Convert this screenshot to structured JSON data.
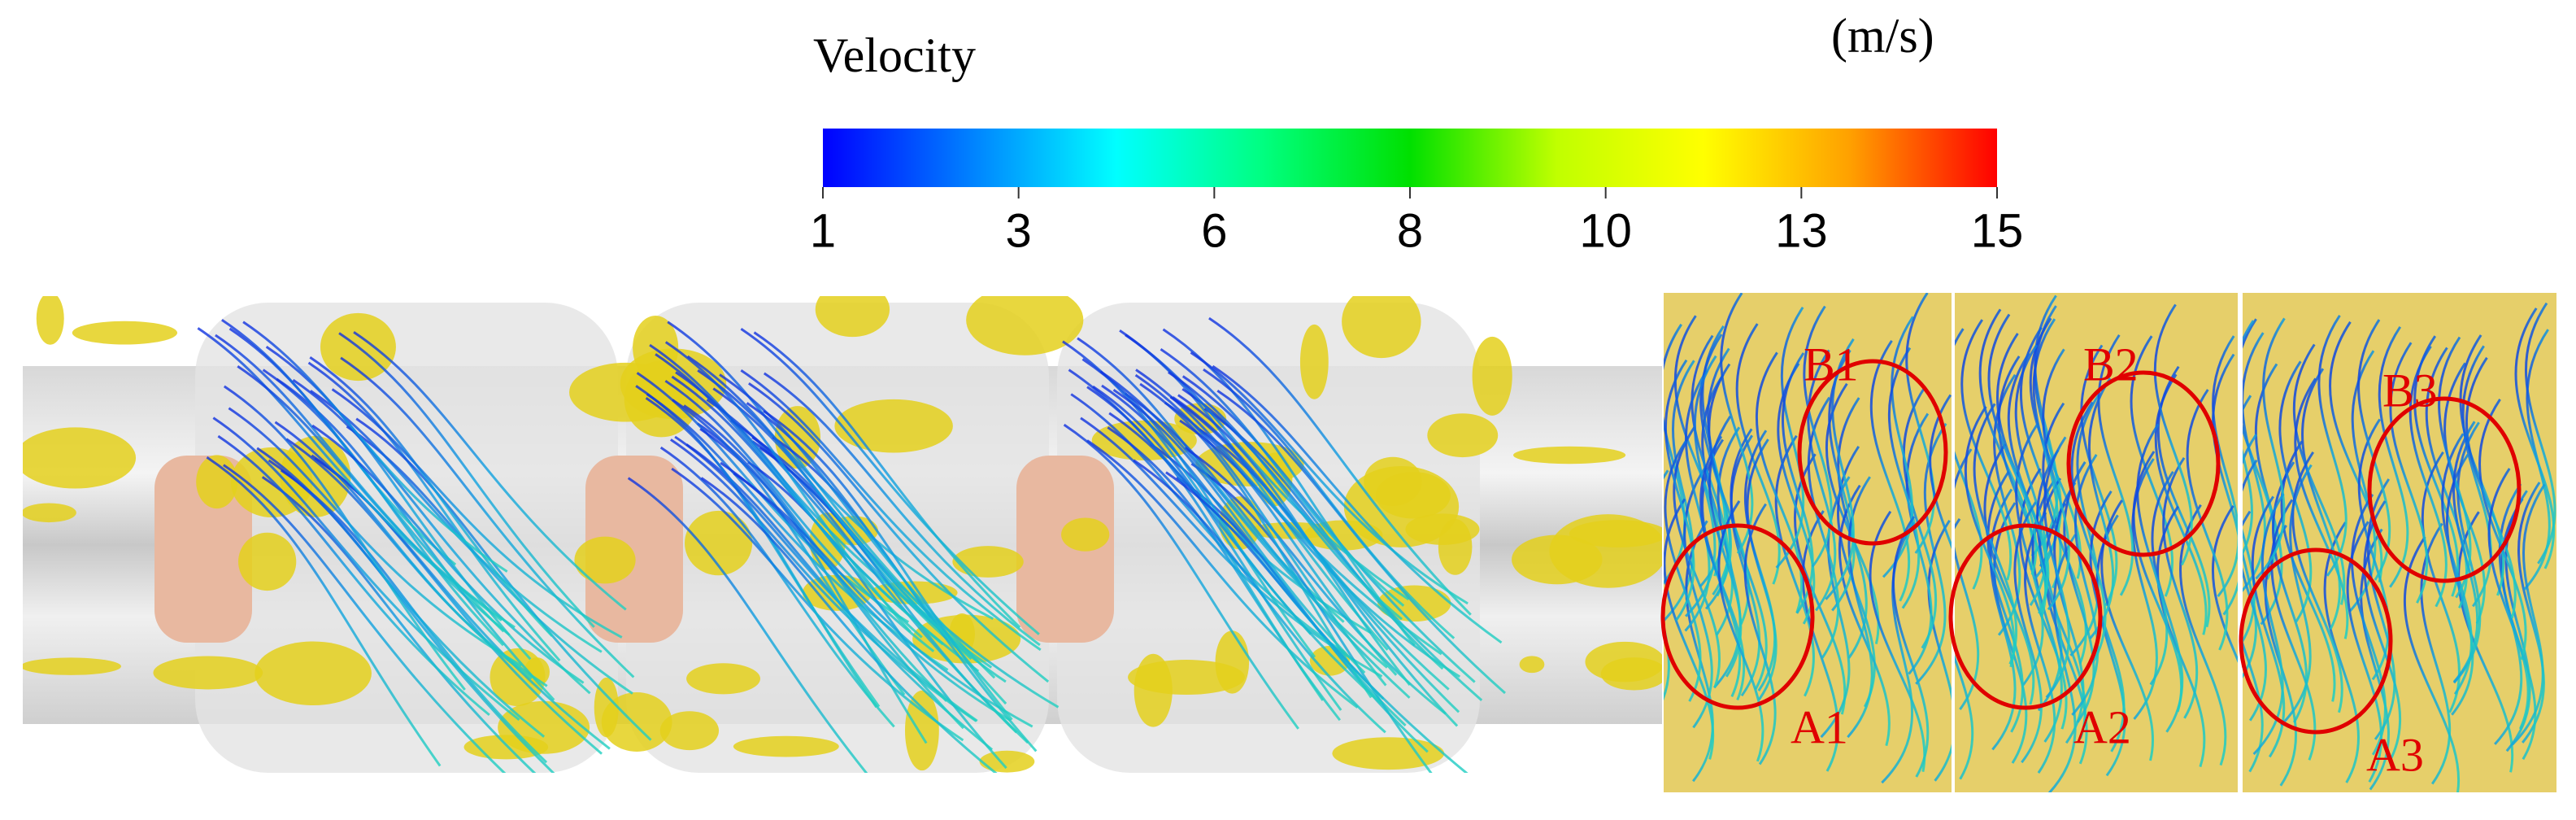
{
  "colorbar": {
    "title": "Velocity",
    "unit": "(m/s)",
    "ticks": [
      1,
      3,
      6,
      8,
      10,
      13,
      15
    ],
    "colors": [
      "#0000ff",
      "#0080ff",
      "#00ffff",
      "#00ff80",
      "#00e000",
      "#c0ff00",
      "#ffff00",
      "#ffa000",
      "#ff0000"
    ]
  },
  "annotations": [
    "B1",
    "A1",
    "B2",
    "A2",
    "B3",
    "A3"
  ],
  "annotation_color": "#e00000"
}
